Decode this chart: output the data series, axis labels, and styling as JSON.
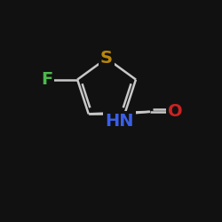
{
  "background_color": "#111111",
  "line_color": "#c8c8c8",
  "line_width": 1.8,
  "atoms": {
    "S": {
      "label": "S",
      "color": "#b8860b",
      "fontsize": 14
    },
    "F": {
      "label": "F",
      "color": "#4db84d",
      "fontsize": 14
    },
    "HN": {
      "label": "HN",
      "color": "#3a5fe8",
      "fontsize": 14
    },
    "O": {
      "label": "O",
      "color": "#cc2222",
      "fontsize": 14
    }
  }
}
